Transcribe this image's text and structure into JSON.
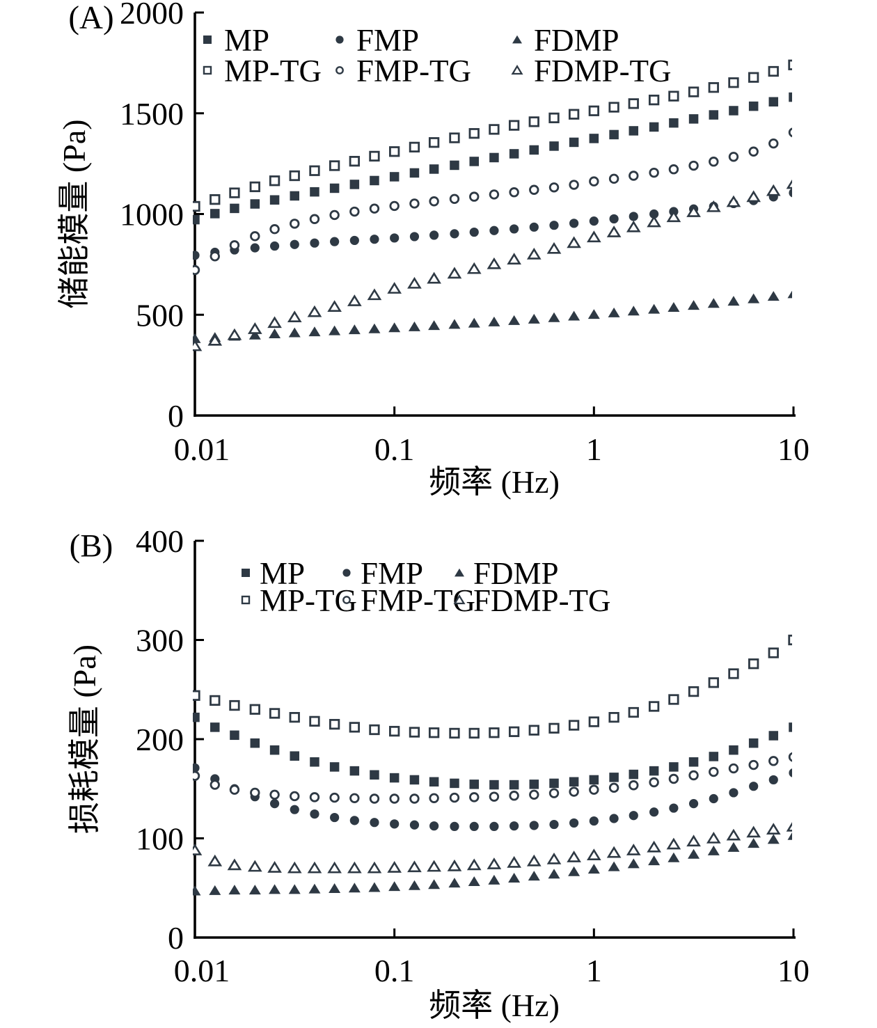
{
  "figure": {
    "background": "#ffffff",
    "marker_color": "#2e3944",
    "axis_color": "#000000"
  },
  "chart_data": [
    {
      "panel_label": "(A)",
      "type": "scatter",
      "x_scale": "log",
      "grid": false,
      "legend_position": "top-inside",
      "xlabel": "频率 (Hz)",
      "ylabel": "储能模量 (Pa)",
      "xlim": [
        0.01,
        10
      ],
      "ylim": [
        0,
        2000
      ],
      "xticks": [
        {
          "value": 0.01,
          "label": "0.01"
        },
        {
          "value": 0.1,
          "label": "0.1"
        },
        {
          "value": 1,
          "label": "1"
        },
        {
          "value": 10,
          "label": "10"
        }
      ],
      "yticks": [
        {
          "value": 0,
          "label": "0"
        },
        {
          "value": 500,
          "label": "500"
        },
        {
          "value": 1000,
          "label": "1000"
        },
        {
          "value": 1500,
          "label": "1500"
        },
        {
          "value": 2000,
          "label": "2000"
        }
      ],
      "x": [
        0.01,
        0.0126,
        0.0158,
        0.02,
        0.0251,
        0.0316,
        0.0398,
        0.0501,
        0.0631,
        0.0794,
        0.1,
        0.126,
        0.158,
        0.2,
        0.251,
        0.316,
        0.398,
        0.501,
        0.631,
        0.794,
        1,
        1.26,
        1.58,
        2,
        2.51,
        3.16,
        3.98,
        5.01,
        6.31,
        7.94,
        10
      ],
      "series": [
        {
          "name": "MP",
          "marker": "square-filled",
          "values": [
            972,
            1002,
            1028,
            1050,
            1070,
            1090,
            1110,
            1128,
            1147,
            1166,
            1185,
            1204,
            1223,
            1242,
            1261,
            1280,
            1299,
            1318,
            1337,
            1356,
            1375,
            1394,
            1413,
            1432,
            1452,
            1472,
            1492,
            1513,
            1535,
            1557,
            1580
          ]
        },
        {
          "name": "MP-TG",
          "marker": "square-open",
          "values": [
            1038,
            1072,
            1105,
            1135,
            1165,
            1190,
            1215,
            1240,
            1262,
            1287,
            1310,
            1332,
            1355,
            1378,
            1400,
            1420,
            1440,
            1458,
            1477,
            1495,
            1512,
            1530,
            1548,
            1566,
            1585,
            1606,
            1628,
            1652,
            1678,
            1708,
            1740
          ]
        },
        {
          "name": "FMP",
          "marker": "circle-filled",
          "values": [
            795,
            810,
            822,
            832,
            841,
            849,
            856,
            863,
            869,
            875,
            881,
            888,
            895,
            902,
            910,
            918,
            926,
            935,
            944,
            954,
            965,
            976,
            988,
            1000,
            1012,
            1025,
            1038,
            1052,
            1067,
            1085,
            1105
          ]
        },
        {
          "name": "FMP-TG",
          "marker": "circle-open",
          "values": [
            722,
            790,
            845,
            890,
            925,
            952,
            975,
            995,
            1012,
            1027,
            1040,
            1052,
            1063,
            1075,
            1086,
            1097,
            1108,
            1120,
            1132,
            1145,
            1162,
            1175,
            1190,
            1205,
            1222,
            1240,
            1260,
            1284,
            1310,
            1350,
            1405
          ]
        },
        {
          "name": "FDMP",
          "marker": "triangle-filled",
          "values": [
            382,
            388,
            394,
            400,
            406,
            411,
            416,
            421,
            426,
            431,
            436,
            441,
            447,
            453,
            459,
            465,
            472,
            479,
            486,
            494,
            502,
            510,
            519,
            528,
            537,
            547,
            557,
            568,
            580,
            592,
            605
          ]
        },
        {
          "name": "FDMP-TG",
          "marker": "triangle-open",
          "values": [
            345,
            372,
            400,
            430,
            460,
            488,
            514,
            540,
            568,
            598,
            630,
            655,
            680,
            705,
            728,
            752,
            775,
            800,
            828,
            857,
            885,
            910,
            935,
            960,
            985,
            1010,
            1035,
            1060,
            1085,
            1115,
            1150
          ]
        }
      ],
      "legend_order": [
        "MP",
        "FMP",
        "FDMP",
        "MP-TG",
        "FMP-TG",
        "FDMP-TG"
      ]
    },
    {
      "panel_label": "(B)",
      "type": "scatter",
      "x_scale": "log",
      "grid": false,
      "legend_position": "top-inside",
      "xlabel": "频率 (Hz)",
      "ylabel": "损耗模量 (Pa)",
      "xlim": [
        0.01,
        10
      ],
      "ylim": [
        0,
        400
      ],
      "xticks": [
        {
          "value": 0.01,
          "label": "0.01"
        },
        {
          "value": 0.1,
          "label": "0.1"
        },
        {
          "value": 1,
          "label": "1"
        },
        {
          "value": 10,
          "label": "10"
        }
      ],
      "yticks": [
        {
          "value": 0,
          "label": "0"
        },
        {
          "value": 100,
          "label": "100"
        },
        {
          "value": 200,
          "label": "200"
        },
        {
          "value": 300,
          "label": "300"
        },
        {
          "value": 400,
          "label": "400"
        }
      ],
      "x": [
        0.01,
        0.0126,
        0.0158,
        0.02,
        0.0251,
        0.0316,
        0.0398,
        0.0501,
        0.0631,
        0.0794,
        0.1,
        0.126,
        0.158,
        0.2,
        0.251,
        0.316,
        0.398,
        0.501,
        0.631,
        0.794,
        1,
        1.26,
        1.58,
        2,
        2.51,
        3.16,
        3.98,
        5.01,
        6.31,
        7.94,
        10
      ],
      "series": [
        {
          "name": "MP",
          "marker": "square-filled",
          "values": [
            222,
            212,
            204,
            196,
            189,
            183,
            177,
            172,
            168,
            164,
            161,
            159,
            157,
            155.5,
            154.5,
            154,
            154,
            154.5,
            155.5,
            157,
            159,
            161.5,
            164.5,
            168,
            172,
            177,
            182.5,
            189,
            196,
            203.5,
            212
          ]
        },
        {
          "name": "MP-TG",
          "marker": "square-open",
          "values": [
            244,
            239,
            234,
            230,
            226,
            222,
            218,
            215,
            212,
            209.5,
            208,
            207,
            206.5,
            206,
            206,
            206.5,
            207.5,
            209,
            211,
            214,
            217.5,
            222,
            227,
            233,
            240,
            248,
            257,
            266,
            276,
            287,
            300
          ]
        },
        {
          "name": "FMP",
          "marker": "circle-filled",
          "values": [
            171,
            160,
            150,
            142,
            135,
            129,
            124.5,
            121,
            118,
            116,
            114.5,
            113.5,
            112.5,
            112,
            112,
            112,
            112.5,
            113,
            114,
            115.5,
            117.5,
            120,
            123,
            126.5,
            130.5,
            135,
            140,
            146,
            152.5,
            159,
            166
          ]
        },
        {
          "name": "FMP-TG",
          "marker": "circle-open",
          "values": [
            163,
            154,
            149,
            146,
            144,
            142.5,
            141.5,
            141,
            140.5,
            140,
            140,
            140,
            140.5,
            141,
            141.5,
            142,
            143,
            144,
            145.5,
            147,
            149,
            151,
            153.5,
            156.5,
            160,
            163.5,
            167,
            170.5,
            174,
            178,
            182
          ]
        },
        {
          "name": "FDMP",
          "marker": "triangle-filled",
          "values": [
            47,
            47.5,
            48,
            48,
            48.5,
            48.5,
            49,
            49.5,
            50,
            50.5,
            51.5,
            52.5,
            53.5,
            55,
            56.5,
            58,
            60,
            62,
            64,
            66.5,
            69,
            71.5,
            74.5,
            77.5,
            80.5,
            84,
            87.5,
            91,
            95,
            99,
            103
          ]
        },
        {
          "name": "FDMP-TG",
          "marker": "triangle-open",
          "values": [
            88,
            77,
            73,
            71.5,
            70.5,
            70,
            70,
            70,
            70,
            70,
            70.5,
            71,
            71.5,
            72,
            73,
            74,
            75.5,
            77,
            79,
            81,
            83,
            85.5,
            88,
            91,
            94,
            97,
            100,
            103,
            106,
            109,
            112
          ]
        }
      ],
      "legend_order": [
        "MP",
        "FMP",
        "FDMP",
        "MP-TG",
        "FMP-TG",
        "FDMP-TG"
      ]
    }
  ]
}
